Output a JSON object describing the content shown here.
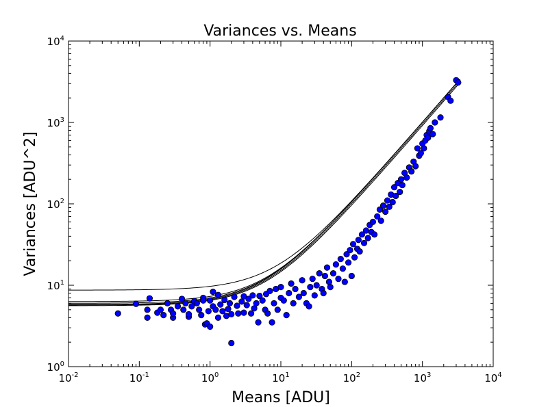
{
  "chart_data": {
    "type": "scatter",
    "title": "Variances vs. Means",
    "xlabel": "Means [ADU]",
    "ylabel": "Variances [ADU^2]",
    "xscale": "log",
    "yscale": "log",
    "xlim": [
      0.01,
      10000
    ],
    "ylim": [
      1,
      10000
    ],
    "x_ticks": [
      {
        "base": "10",
        "exp": "-2",
        "value": 0.01
      },
      {
        "base": "10",
        "exp": "-1",
        "value": 0.1
      },
      {
        "base": "10",
        "exp": "0",
        "value": 1
      },
      {
        "base": "10",
        "exp": "1",
        "value": 10
      },
      {
        "base": "10",
        "exp": "2",
        "value": 100
      },
      {
        "base": "10",
        "exp": "3",
        "value": 1000
      },
      {
        "base": "10",
        "exp": "4",
        "value": 10000
      }
    ],
    "y_ticks": [
      {
        "base": "10",
        "exp": "0",
        "value": 1
      },
      {
        "base": "10",
        "exp": "1",
        "value": 10
      },
      {
        "base": "10",
        "exp": "2",
        "value": 100
      },
      {
        "base": "10",
        "exp": "3",
        "value": 1000
      },
      {
        "base": "10",
        "exp": "4",
        "value": 10000
      }
    ],
    "grid": false,
    "marker_color": "#0000ff",
    "marker_edge_color": "#000000",
    "line_color": "#000000",
    "fit_curves": [
      {
        "read_noise_var": 8.7,
        "gain": 1.0
      },
      {
        "read_noise_var": 6.3,
        "gain": 1.0
      },
      {
        "read_noise_var": 6.0,
        "gain": 1.0
      },
      {
        "read_noise_var": 5.8,
        "gain": 1.0
      },
      {
        "read_noise_var": 5.7,
        "gain": 1.05
      },
      {
        "read_noise_var": 5.6,
        "gain": 1.1
      }
    ],
    "points": [
      [
        0.05,
        4.5
      ],
      [
        0.09,
        5.9
      ],
      [
        0.13,
        5.0
      ],
      [
        0.13,
        4.0
      ],
      [
        0.14,
        6.9
      ],
      [
        0.18,
        4.6
      ],
      [
        0.2,
        5.0
      ],
      [
        0.22,
        4.3
      ],
      [
        0.25,
        6.0
      ],
      [
        0.28,
        5.0
      ],
      [
        0.3,
        4.0
      ],
      [
        0.3,
        4.5
      ],
      [
        0.35,
        5.5
      ],
      [
        0.4,
        6.8
      ],
      [
        0.42,
        5.0
      ],
      [
        0.45,
        6.0
      ],
      [
        0.5,
        4.1
      ],
      [
        0.5,
        4.4
      ],
      [
        0.55,
        5.5
      ],
      [
        0.6,
        6.4
      ],
      [
        0.65,
        6.0
      ],
      [
        0.7,
        5.0
      ],
      [
        0.75,
        4.3
      ],
      [
        0.8,
        7.0
      ],
      [
        0.8,
        6.5
      ],
      [
        0.85,
        3.3
      ],
      [
        0.9,
        3.4
      ],
      [
        0.95,
        4.8
      ],
      [
        1.0,
        3.1
      ],
      [
        1.0,
        6.5
      ],
      [
        1.1,
        5.5
      ],
      [
        1.1,
        8.3
      ],
      [
        1.2,
        5.0
      ],
      [
        1.3,
        4.0
      ],
      [
        1.3,
        7.6
      ],
      [
        1.4,
        5.8
      ],
      [
        1.5,
        4.8
      ],
      [
        1.6,
        6.6
      ],
      [
        1.7,
        4.2
      ],
      [
        1.8,
        5.1
      ],
      [
        1.9,
        6.0
      ],
      [
        2.0,
        1.95
      ],
      [
        2.0,
        4.4
      ],
      [
        2.2,
        7.2
      ],
      [
        2.4,
        5.6
      ],
      [
        2.5,
        4.5
      ],
      [
        2.8,
        6.3
      ],
      [
        3.0,
        4.6
      ],
      [
        3.0,
        7.3
      ],
      [
        3.3,
        5.7
      ],
      [
        3.5,
        6.8
      ],
      [
        3.8,
        4.5
      ],
      [
        4.0,
        7.5
      ],
      [
        4.2,
        5.2
      ],
      [
        4.5,
        6.0
      ],
      [
        4.8,
        3.5
      ],
      [
        5.0,
        7.4
      ],
      [
        5.5,
        6.5
      ],
      [
        6.0,
        5.0
      ],
      [
        6.2,
        7.8
      ],
      [
        6.5,
        4.5
      ],
      [
        7.0,
        8.5
      ],
      [
        7.5,
        3.5
      ],
      [
        8.0,
        6.0
      ],
      [
        8.5,
        9.0
      ],
      [
        9.0,
        5.0
      ],
      [
        10,
        7.0
      ],
      [
        10,
        9.5
      ],
      [
        11,
        6.5
      ],
      [
        12,
        4.3
      ],
      [
        13,
        8.0
      ],
      [
        14,
        10.5
      ],
      [
        15,
        6.0
      ],
      [
        16,
        9.0
      ],
      [
        18,
        7.2
      ],
      [
        20,
        11.5
      ],
      [
        21,
        8.0
      ],
      [
        23,
        6.0
      ],
      [
        25,
        5.5
      ],
      [
        26,
        9.5
      ],
      [
        28,
        12.0
      ],
      [
        30,
        7.5
      ],
      [
        32,
        10.0
      ],
      [
        35,
        14.0
      ],
      [
        38,
        9.0
      ],
      [
        40,
        8.0
      ],
      [
        42,
        13.0
      ],
      [
        45,
        16.5
      ],
      [
        48,
        11.0
      ],
      [
        50,
        9.5
      ],
      [
        55,
        14.0
      ],
      [
        60,
        18.0
      ],
      [
        65,
        12.0
      ],
      [
        70,
        21.0
      ],
      [
        75,
        16.0
      ],
      [
        80,
        11.0
      ],
      [
        85,
        24.0
      ],
      [
        90,
        19.0
      ],
      [
        95,
        27.0
      ],
      [
        100,
        13.0
      ],
      [
        105,
        32.0
      ],
      [
        110,
        22.0
      ],
      [
        120,
        28.0
      ],
      [
        125,
        36.0
      ],
      [
        130,
        26.0
      ],
      [
        140,
        42.0
      ],
      [
        150,
        33.0
      ],
      [
        160,
        47.0
      ],
      [
        170,
        38.0
      ],
      [
        180,
        55.0
      ],
      [
        190,
        45.0
      ],
      [
        200,
        60.0
      ],
      [
        210,
        42.0
      ],
      [
        230,
        70.0
      ],
      [
        250,
        85.0
      ],
      [
        260,
        62.0
      ],
      [
        280,
        95.0
      ],
      [
        300,
        80.0
      ],
      [
        320,
        110.0
      ],
      [
        340,
        92.0
      ],
      [
        360,
        130.0
      ],
      [
        380,
        105.0
      ],
      [
        400,
        160.0
      ],
      [
        420,
        125.0
      ],
      [
        450,
        180.0
      ],
      [
        480,
        140.0
      ],
      [
        500,
        200.0
      ],
      [
        520,
        170.0
      ],
      [
        560,
        240.0
      ],
      [
        600,
        210.0
      ],
      [
        650,
        280.0
      ],
      [
        700,
        250.0
      ],
      [
        750,
        330.0
      ],
      [
        800,
        290.0
      ],
      [
        850,
        480.0
      ],
      [
        900,
        390.0
      ],
      [
        950,
        420.0
      ],
      [
        1000,
        550.0
      ],
      [
        1050,
        480.0
      ],
      [
        1100,
        600.0
      ],
      [
        1150,
        700.0
      ],
      [
        1200,
        650.0
      ],
      [
        1250,
        780.0
      ],
      [
        1300,
        850.0
      ],
      [
        1400,
        720.0
      ],
      [
        1500,
        1000.0
      ],
      [
        1800,
        1150.0
      ],
      [
        2300,
        2050.0
      ],
      [
        2500,
        1850.0
      ],
      [
        3000,
        3300.0
      ],
      [
        3200,
        3100.0
      ]
    ]
  }
}
